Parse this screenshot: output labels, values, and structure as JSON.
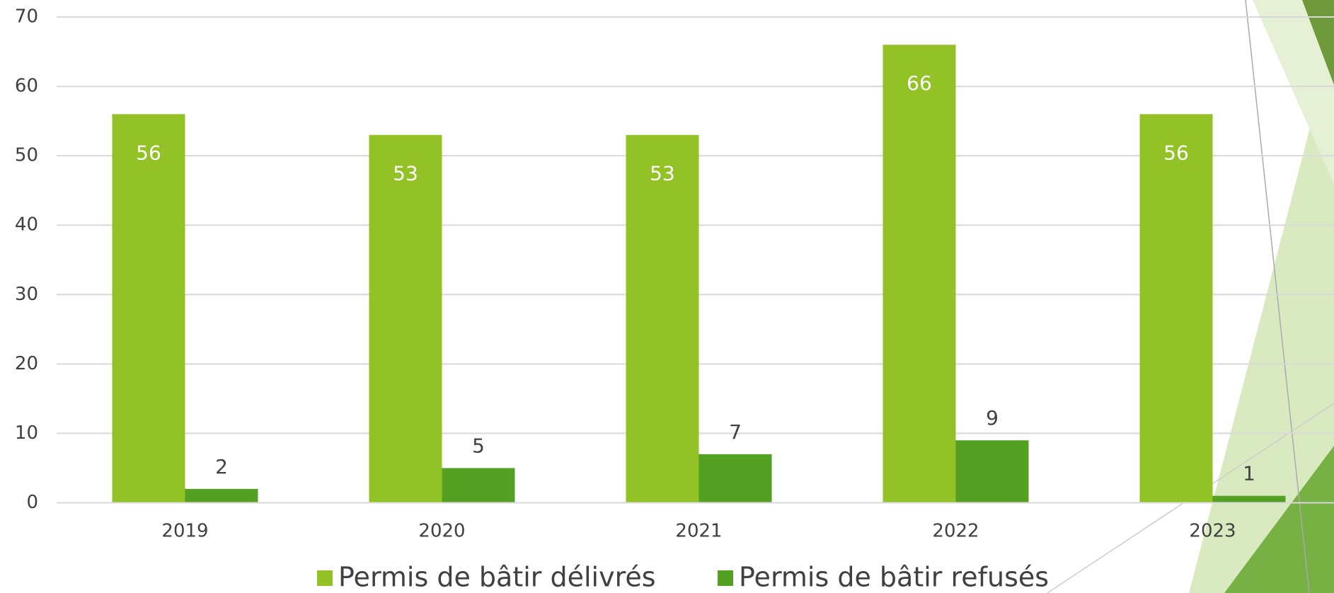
{
  "chart_data": {
    "type": "bar",
    "categories": [
      "2019",
      "2020",
      "2021",
      "2022",
      "2023"
    ],
    "series": [
      {
        "name": "Permis de bâtir délivrés",
        "color": "#92c225",
        "values": [
          56,
          53,
          53,
          66,
          56
        ]
      },
      {
        "name": "Permis de bâtir refusés",
        "color": "#53a022",
        "values": [
          2,
          5,
          7,
          9,
          1
        ]
      }
    ],
    "ylim": [
      0,
      70
    ],
    "yticks": [
      0,
      10,
      20,
      30,
      40,
      50,
      60,
      70
    ],
    "grid": true,
    "legend": "bottom"
  }
}
